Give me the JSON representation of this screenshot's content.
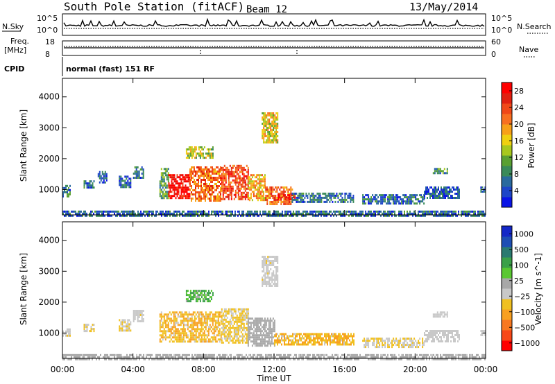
{
  "header": {
    "station": "South Pole Station (fitACF)",
    "beam": "Beam 12",
    "date": "13/May/2014"
  },
  "top_panel": {
    "left_label": "N.Sky",
    "right_label": "N.Search",
    "tick_hi": "10^5",
    "tick_lo": "10^0"
  },
  "freq_panel": {
    "left_label": "Freq.",
    "unit": "[MHz]",
    "ticks": [
      "18",
      "8"
    ],
    "right_label": "Nave",
    "right_ticks": [
      "60",
      "0"
    ]
  },
  "cpid": {
    "label": "CPID",
    "value": "normal (fast) 151 RF"
  },
  "chart_data": [
    {
      "type": "heatmap",
      "title": "",
      "xlabel": "Time UT",
      "ylabel": "Slant Range [km]",
      "xticks": [
        "00:00",
        "04:00",
        "08:00",
        "12:00",
        "16:00",
        "20:00",
        "00:00"
      ],
      "yticks": [
        "1000",
        "2000",
        "3000",
        "4000"
      ],
      "xlim": [
        0,
        24
      ],
      "ylim": [
        180,
        4600
      ],
      "colorbar": {
        "label": "Power [dB]",
        "ticks": [
          "4",
          "8",
          "12",
          "16",
          "20",
          "24",
          "28"
        ],
        "range": [
          0,
          30
        ],
        "colors": [
          "#0a14e6",
          "#1e46c8",
          "#2a6a9e",
          "#3a8a5a",
          "#5aa032",
          "#a8c81e",
          "#f0d010",
          "#f8a018",
          "#f87020",
          "#f04818",
          "#e02010",
          "#ff0000"
        ]
      },
      "regions": [
        {
          "t": [
            0.0,
            0.4
          ],
          "r": [
            800,
            1150
          ],
          "v": 7
        },
        {
          "t": [
            1.2,
            1.8
          ],
          "r": [
            1050,
            1300
          ],
          "v": 6
        },
        {
          "t": [
            2.0,
            2.5
          ],
          "r": [
            1250,
            1600
          ],
          "v": 5
        },
        {
          "t": [
            3.2,
            3.9
          ],
          "r": [
            1100,
            1450
          ],
          "v": 5
        },
        {
          "t": [
            4.0,
            4.6
          ],
          "r": [
            1350,
            1750
          ],
          "v": 6
        },
        {
          "t": [
            5.5,
            6.0
          ],
          "r": [
            700,
            1700
          ],
          "v": 10
        },
        {
          "t": [
            6.0,
            7.2
          ],
          "r": [
            700,
            1500
          ],
          "v": 28
        },
        {
          "t": [
            7.2,
            9.0
          ],
          "r": [
            650,
            1750
          ],
          "v": 22
        },
        {
          "t": [
            9.0,
            10.5
          ],
          "r": [
            700,
            1800
          ],
          "v": 24
        },
        {
          "t": [
            10.5,
            11.5
          ],
          "r": [
            650,
            1500
          ],
          "v": 18
        },
        {
          "t": [
            11.5,
            13.0
          ],
          "r": [
            550,
            1100
          ],
          "v": 22
        },
        {
          "t": [
            12.2,
            13.2
          ],
          "r": [
            700,
            850
          ],
          "v": 28
        },
        {
          "t": [
            13.0,
            16.5
          ],
          "r": [
            600,
            900
          ],
          "v": 7
        },
        {
          "t": [
            17.0,
            20.5
          ],
          "r": [
            550,
            850
          ],
          "v": 6
        },
        {
          "t": [
            20.5,
            22.5
          ],
          "r": [
            700,
            1100
          ],
          "v": 5
        },
        {
          "t": [
            21.0,
            21.8
          ],
          "r": [
            1550,
            1700
          ],
          "v": 9
        },
        {
          "t": [
            23.7,
            24.0
          ],
          "r": [
            900,
            1100
          ],
          "v": 5
        },
        {
          "t": [
            7.0,
            8.5
          ],
          "r": [
            2000,
            2400
          ],
          "v": 14
        },
        {
          "t": [
            11.3,
            12.2
          ],
          "r": [
            2500,
            3500
          ],
          "v": 16
        },
        {
          "t": [
            0.0,
            24.0
          ],
          "r": [
            180,
            320
          ],
          "v": 6
        }
      ]
    },
    {
      "type": "heatmap",
      "title": "",
      "xlabel": "Time UT",
      "ylabel": "Slant Range [km]",
      "xticks": [
        "00:00",
        "04:00",
        "08:00",
        "12:00",
        "16:00",
        "20:00",
        "00:00"
      ],
      "yticks": [
        "1000",
        "2000",
        "3000",
        "4000"
      ],
      "xlim": [
        0,
        24
      ],
      "ylim": [
        180,
        4600
      ],
      "colorbar": {
        "label": "Velocity [m s^-1]",
        "ticks": [
          "1000",
          "500",
          "100",
          "25",
          "−25",
          "−100",
          "−500",
          "−1000"
        ],
        "range": [
          -1000,
          1000
        ],
        "colors": [
          "#ff0000",
          "#f84818",
          "#f87820",
          "#f8a020",
          "#f0c020",
          "#c8c8c8",
          "#a8a8a8",
          "#5ac832",
          "#3aa048",
          "#2a7a70",
          "#1e4eb4",
          "#1428c8"
        ]
      },
      "regions": [
        {
          "t": [
            0.0,
            0.4
          ],
          "r": [
            900,
            1150
          ],
          "v": -100
        },
        {
          "t": [
            1.2,
            1.8
          ],
          "r": [
            1050,
            1300
          ],
          "v": -150
        },
        {
          "t": [
            3.2,
            3.9
          ],
          "r": [
            1100,
            1450
          ],
          "v": -120
        },
        {
          "t": [
            4.0,
            4.6
          ],
          "r": [
            1350,
            1750
          ],
          "v": -100
        },
        {
          "t": [
            5.5,
            9.0
          ],
          "r": [
            700,
            1700
          ],
          "v": -300
        },
        {
          "t": [
            9.0,
            10.5
          ],
          "r": [
            700,
            1800
          ],
          "v": -200
        },
        {
          "t": [
            10.5,
            12.0
          ],
          "r": [
            600,
            1500
          ],
          "v": 50
        },
        {
          "t": [
            12.0,
            16.5
          ],
          "r": [
            600,
            1000
          ],
          "v": -300
        },
        {
          "t": [
            17.0,
            20.5
          ],
          "r": [
            550,
            850
          ],
          "v": -150
        },
        {
          "t": [
            20.5,
            22.5
          ],
          "r": [
            700,
            1100
          ],
          "v": -60
        },
        {
          "t": [
            21.0,
            21.8
          ],
          "r": [
            1550,
            1700
          ],
          "v": -50
        },
        {
          "t": [
            23.7,
            24.0
          ],
          "r": [
            900,
            1100
          ],
          "v": -100
        },
        {
          "t": [
            7.0,
            8.5
          ],
          "r": [
            2000,
            2400
          ],
          "v": 300
        },
        {
          "t": [
            11.3,
            12.2
          ],
          "r": [
            2500,
            3500
          ],
          "v": -100
        },
        {
          "t": [
            0.0,
            24.0
          ],
          "r": [
            180,
            320
          ],
          "v": 30
        }
      ]
    }
  ]
}
